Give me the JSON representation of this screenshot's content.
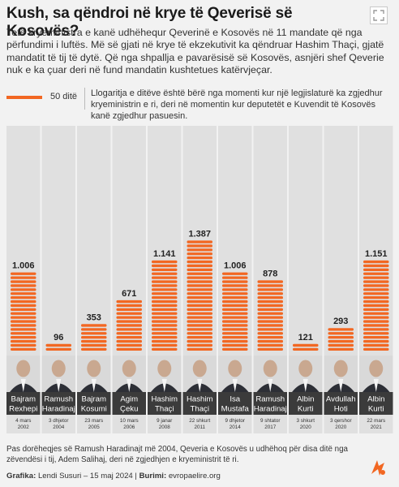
{
  "title": "Kush, sa qëndroi në krye të Qeverisë së Kosovës?",
  "subtitle": "Tetë kryeministra e kanë udhëhequr Qeverinë e Kosovës në 11 mandate që nga përfundimi i luftës. Më së gjati në krye të ekzekutivit ka qëndruar Hashim Thaçi, gjatë mandatit të tij të dytë. Që nga shpallja e pavarësisë së Kosovës, asnjëri shef Qeverie nuk e ka çuar deri në fund mandatin kushtetues katërvjeçar.",
  "legend": {
    "unit_label": "50 ditë",
    "note": "Llogaritja e ditëve është bërë nga momenti kur një legjislaturë ka zgjedhur kryeministrin e ri, deri në momentin kur deputetët e Kuvendit të Kosovës kanë zgjedhur pasuesin."
  },
  "footnote": "Pas dorëheqjes së Ramush Haradinajt më 2004, Qeveria e Kosovës u udhëhoq për disa ditë nga zëvendësi i tij, Adem Salihaj, deri në zgjedhjen e kryeministrit të ri.",
  "credit": {
    "graphic_label": "Grafika:",
    "graphic_value": "Lendi Susuri – 15 maj 2024",
    "source_label": "Burimi:",
    "source_value": "evropaelire.org"
  },
  "colors": {
    "accent": "#f26722",
    "name_band": "#3b3b3b",
    "cell_bg": "#e0e0e0"
  },
  "icons": {
    "expand": "expand-arrows-icon",
    "logo": "rfe-rl-logo-icon"
  },
  "chart_data": {
    "type": "bar",
    "unit": "ditë",
    "segment_size": 50,
    "ylim": [
      0,
      1387
    ],
    "categories": [
      {
        "name_line1": "Bajram",
        "name_line2": "Rexhepi",
        "date": "4 mars 2002",
        "value": 1006,
        "label": "1.006"
      },
      {
        "name_line1": "Ramush",
        "name_line2": "Haradinaj",
        "date": "3 dhjetor 2004",
        "value": 96,
        "label": "96"
      },
      {
        "name_line1": "Bajram",
        "name_line2": "Kosumi",
        "date": "23 mars 2005",
        "value": 353,
        "label": "353"
      },
      {
        "name_line1": "Agim",
        "name_line2": "Çeku",
        "date": "10 mars 2006",
        "value": 671,
        "label": "671"
      },
      {
        "name_line1": "Hashim",
        "name_line2": "Thaçi",
        "date": "9 janar 2008",
        "value": 1141,
        "label": "1.141"
      },
      {
        "name_line1": "Hashim",
        "name_line2": "Thaçi",
        "date": "22 shkurt 2011",
        "value": 1387,
        "label": "1.387"
      },
      {
        "name_line1": "Isa",
        "name_line2": "Mustafa",
        "date": "9 dhjetor 2014",
        "value": 1006,
        "label": "1.006"
      },
      {
        "name_line1": "Ramush",
        "name_line2": "Haradinaj",
        "date": "9 shtator 2017",
        "value": 878,
        "label": "878"
      },
      {
        "name_line1": "Albin",
        "name_line2": "Kurti",
        "date": "3 shkurt 2020",
        "value": 121,
        "label": "121"
      },
      {
        "name_line1": "Avdullah",
        "name_line2": "Hoti",
        "date": "3 qershor 2020",
        "value": 293,
        "label": "293"
      },
      {
        "name_line1": "Albin",
        "name_line2": "Kurti",
        "date": "22 mars 2021",
        "value": 1151,
        "label": "1.151"
      }
    ]
  }
}
